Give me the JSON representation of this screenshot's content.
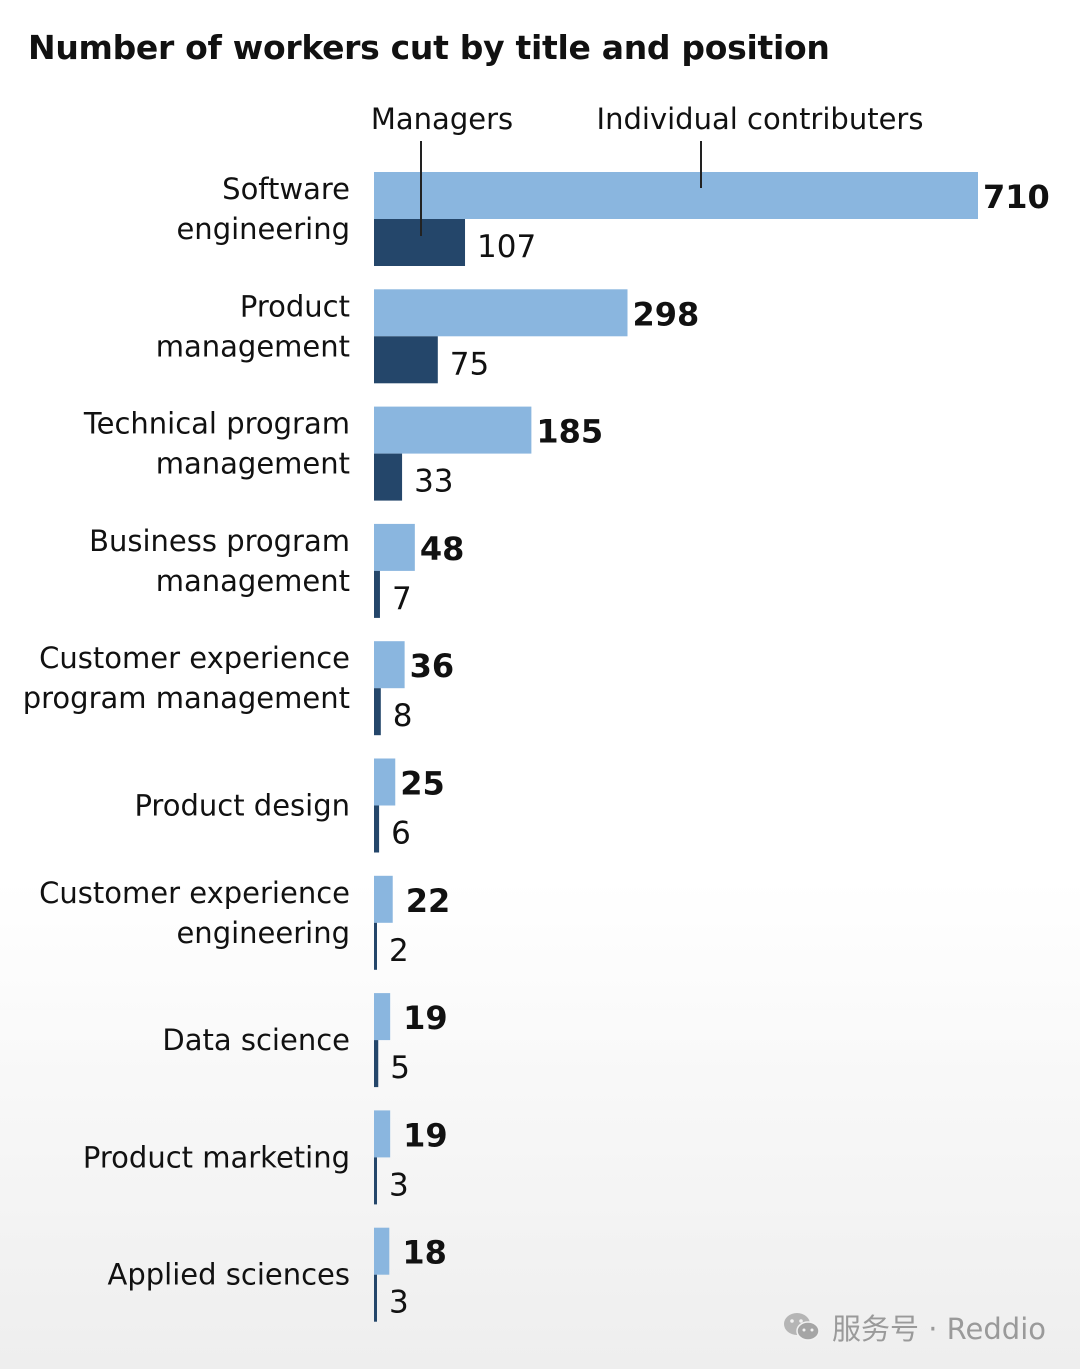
{
  "chart_data": {
    "type": "bar",
    "orientation": "horizontal",
    "title": "Number of workers cut by title and position",
    "categories": [
      [
        "Software",
        "engineering"
      ],
      [
        "Product",
        "management"
      ],
      [
        "Technical program",
        "management"
      ],
      [
        "Business program",
        "management"
      ],
      [
        "Customer experience",
        "program management"
      ],
      [
        "Product design"
      ],
      [
        "Customer experience",
        "engineering"
      ],
      [
        "Data science"
      ],
      [
        "Product marketing"
      ],
      [
        "Applied sciences"
      ]
    ],
    "series": [
      {
        "name": "Individual contributers",
        "color": "#8ab6df",
        "values": [
          710,
          298,
          185,
          48,
          36,
          25,
          22,
          19,
          19,
          18
        ]
      },
      {
        "name": "Managers",
        "color": "#24466a",
        "values": [
          107,
          75,
          33,
          7,
          8,
          6,
          2,
          5,
          3,
          3
        ]
      }
    ],
    "grid": false,
    "legend_placement": "top, labels with leader lines to first bars"
  },
  "watermark": {
    "text": "服务号 · Reddio",
    "icon": "wechat-icon"
  }
}
